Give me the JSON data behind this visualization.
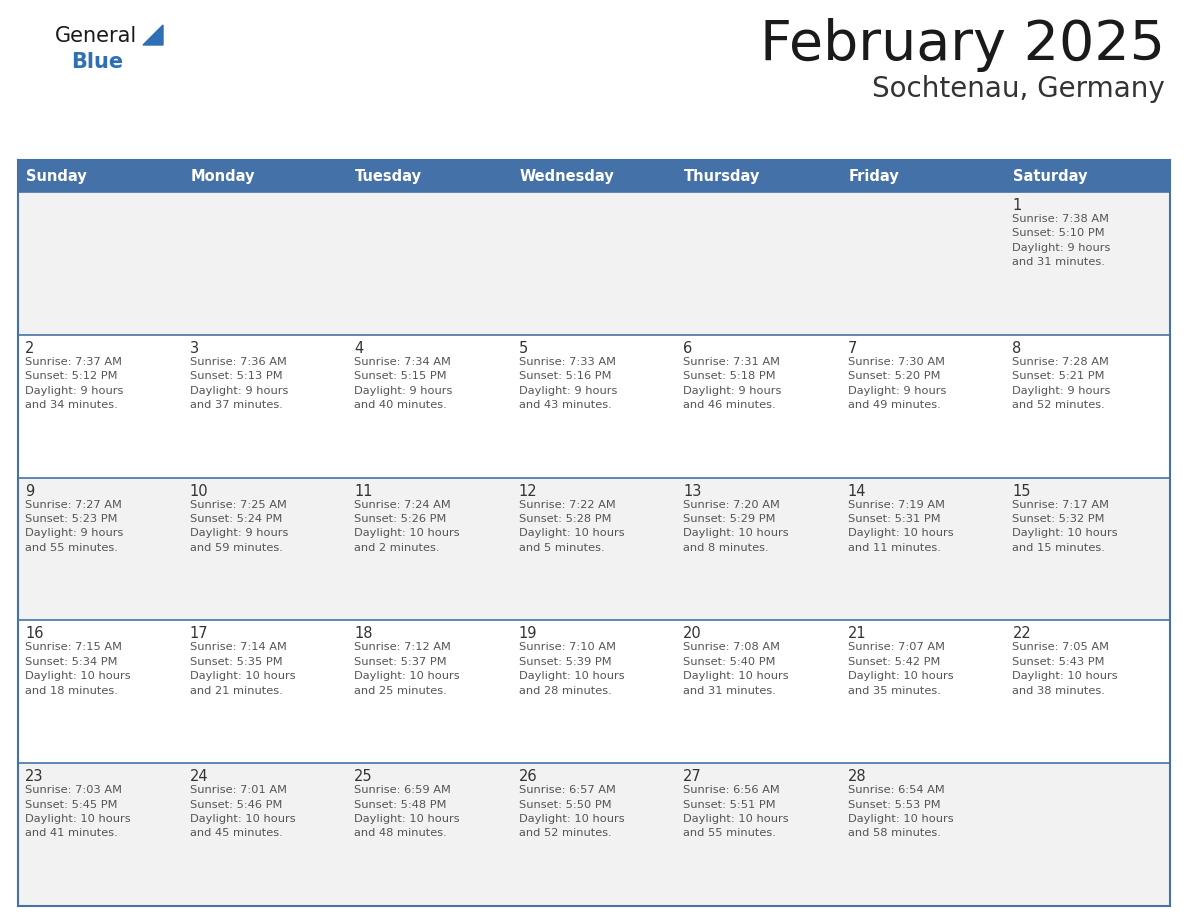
{
  "title": "February 2025",
  "subtitle": "Sochtenau, Germany",
  "days_of_week": [
    "Sunday",
    "Monday",
    "Tuesday",
    "Wednesday",
    "Thursday",
    "Friday",
    "Saturday"
  ],
  "header_bg": "#4472a8",
  "header_text_color": "#ffffff",
  "row_bg_odd": "#f2f2f2",
  "row_bg_even": "#ffffff",
  "cell_border_color": "#4472a8",
  "day_number_color": "#333333",
  "info_text_color": "#555555",
  "title_color": "#1a1a1a",
  "subtitle_color": "#333333",
  "general_text_color": "#1a1a1a",
  "general_blue_triangle_color": "#2e6fb5",
  "general_blue_word_color": "#2e6fb5",
  "weeks": [
    [
      {
        "day": null,
        "info": ""
      },
      {
        "day": null,
        "info": ""
      },
      {
        "day": null,
        "info": ""
      },
      {
        "day": null,
        "info": ""
      },
      {
        "day": null,
        "info": ""
      },
      {
        "day": null,
        "info": ""
      },
      {
        "day": 1,
        "info": "Sunrise: 7:38 AM\nSunset: 5:10 PM\nDaylight: 9 hours\nand 31 minutes."
      }
    ],
    [
      {
        "day": 2,
        "info": "Sunrise: 7:37 AM\nSunset: 5:12 PM\nDaylight: 9 hours\nand 34 minutes."
      },
      {
        "day": 3,
        "info": "Sunrise: 7:36 AM\nSunset: 5:13 PM\nDaylight: 9 hours\nand 37 minutes."
      },
      {
        "day": 4,
        "info": "Sunrise: 7:34 AM\nSunset: 5:15 PM\nDaylight: 9 hours\nand 40 minutes."
      },
      {
        "day": 5,
        "info": "Sunrise: 7:33 AM\nSunset: 5:16 PM\nDaylight: 9 hours\nand 43 minutes."
      },
      {
        "day": 6,
        "info": "Sunrise: 7:31 AM\nSunset: 5:18 PM\nDaylight: 9 hours\nand 46 minutes."
      },
      {
        "day": 7,
        "info": "Sunrise: 7:30 AM\nSunset: 5:20 PM\nDaylight: 9 hours\nand 49 minutes."
      },
      {
        "day": 8,
        "info": "Sunrise: 7:28 AM\nSunset: 5:21 PM\nDaylight: 9 hours\nand 52 minutes."
      }
    ],
    [
      {
        "day": 9,
        "info": "Sunrise: 7:27 AM\nSunset: 5:23 PM\nDaylight: 9 hours\nand 55 minutes."
      },
      {
        "day": 10,
        "info": "Sunrise: 7:25 AM\nSunset: 5:24 PM\nDaylight: 9 hours\nand 59 minutes."
      },
      {
        "day": 11,
        "info": "Sunrise: 7:24 AM\nSunset: 5:26 PM\nDaylight: 10 hours\nand 2 minutes."
      },
      {
        "day": 12,
        "info": "Sunrise: 7:22 AM\nSunset: 5:28 PM\nDaylight: 10 hours\nand 5 minutes."
      },
      {
        "day": 13,
        "info": "Sunrise: 7:20 AM\nSunset: 5:29 PM\nDaylight: 10 hours\nand 8 minutes."
      },
      {
        "day": 14,
        "info": "Sunrise: 7:19 AM\nSunset: 5:31 PM\nDaylight: 10 hours\nand 11 minutes."
      },
      {
        "day": 15,
        "info": "Sunrise: 7:17 AM\nSunset: 5:32 PM\nDaylight: 10 hours\nand 15 minutes."
      }
    ],
    [
      {
        "day": 16,
        "info": "Sunrise: 7:15 AM\nSunset: 5:34 PM\nDaylight: 10 hours\nand 18 minutes."
      },
      {
        "day": 17,
        "info": "Sunrise: 7:14 AM\nSunset: 5:35 PM\nDaylight: 10 hours\nand 21 minutes."
      },
      {
        "day": 18,
        "info": "Sunrise: 7:12 AM\nSunset: 5:37 PM\nDaylight: 10 hours\nand 25 minutes."
      },
      {
        "day": 19,
        "info": "Sunrise: 7:10 AM\nSunset: 5:39 PM\nDaylight: 10 hours\nand 28 minutes."
      },
      {
        "day": 20,
        "info": "Sunrise: 7:08 AM\nSunset: 5:40 PM\nDaylight: 10 hours\nand 31 minutes."
      },
      {
        "day": 21,
        "info": "Sunrise: 7:07 AM\nSunset: 5:42 PM\nDaylight: 10 hours\nand 35 minutes."
      },
      {
        "day": 22,
        "info": "Sunrise: 7:05 AM\nSunset: 5:43 PM\nDaylight: 10 hours\nand 38 minutes."
      }
    ],
    [
      {
        "day": 23,
        "info": "Sunrise: 7:03 AM\nSunset: 5:45 PM\nDaylight: 10 hours\nand 41 minutes."
      },
      {
        "day": 24,
        "info": "Sunrise: 7:01 AM\nSunset: 5:46 PM\nDaylight: 10 hours\nand 45 minutes."
      },
      {
        "day": 25,
        "info": "Sunrise: 6:59 AM\nSunset: 5:48 PM\nDaylight: 10 hours\nand 48 minutes."
      },
      {
        "day": 26,
        "info": "Sunrise: 6:57 AM\nSunset: 5:50 PM\nDaylight: 10 hours\nand 52 minutes."
      },
      {
        "day": 27,
        "info": "Sunrise: 6:56 AM\nSunset: 5:51 PM\nDaylight: 10 hours\nand 55 minutes."
      },
      {
        "day": 28,
        "info": "Sunrise: 6:54 AM\nSunset: 5:53 PM\nDaylight: 10 hours\nand 58 minutes."
      },
      {
        "day": null,
        "info": ""
      }
    ]
  ]
}
